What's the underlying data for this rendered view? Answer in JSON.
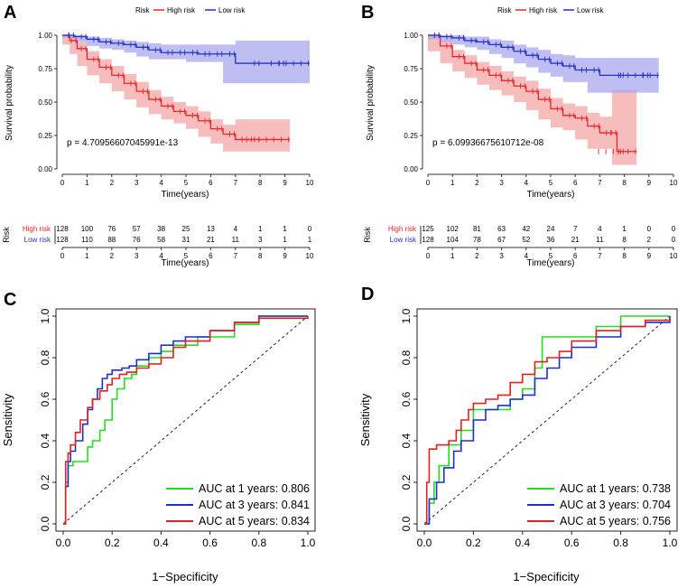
{
  "colors": {
    "high": "#E8262A",
    "low": "#2431C9",
    "high_band": "#F4A6A6",
    "low_band": "#A8A8EE",
    "auc1": "#22DD22",
    "auc3": "#1F2FCF",
    "auc5": "#E0211F"
  },
  "chart_data": [
    {
      "panel": "A",
      "type": "line",
      "subtype": "kaplan-meier",
      "legend": {
        "title": "Risk",
        "entries": [
          "High risk",
          "Low risk"
        ]
      },
      "xlabel": "Time(years)",
      "ylabel": "Survival probability",
      "xlim": [
        0,
        10
      ],
      "ylim": [
        0,
        1
      ],
      "xticks": [
        "0",
        "1",
        "2",
        "3",
        "4",
        "5",
        "6",
        "7",
        "8",
        "9",
        "10"
      ],
      "yticks": [
        "0.00",
        "0.25",
        "0.50",
        "0.75",
        "1.00"
      ],
      "pvalue_text": "p = 4.70956607045991e-13",
      "series": [
        {
          "name": "High risk",
          "x": [
            0,
            0.3,
            0.6,
            1,
            1.5,
            2,
            2.5,
            3,
            3.5,
            4,
            4.5,
            5,
            5.5,
            6,
            6.5,
            7,
            7.5,
            8,
            9.2
          ],
          "y": [
            1,
            0.96,
            0.9,
            0.82,
            0.76,
            0.7,
            0.64,
            0.58,
            0.52,
            0.47,
            0.43,
            0.4,
            0.36,
            0.3,
            0.26,
            0.22,
            0.22,
            0.22,
            0.22
          ],
          "lower": [
            1,
            0.93,
            0.86,
            0.77,
            0.7,
            0.64,
            0.58,
            0.52,
            0.46,
            0.41,
            0.37,
            0.34,
            0.3,
            0.24,
            0.19,
            0.13,
            0.13,
            0.13,
            0.13
          ],
          "upper": [
            1,
            0.99,
            0.95,
            0.88,
            0.82,
            0.77,
            0.71,
            0.65,
            0.59,
            0.54,
            0.5,
            0.47,
            0.43,
            0.37,
            0.33,
            0.37,
            0.37,
            0.37,
            0.37
          ]
        },
        {
          "name": "Low risk",
          "x": [
            0,
            0.5,
            1,
            1.5,
            2,
            2.5,
            3,
            3.5,
            4,
            4.5,
            5,
            5.5,
            6,
            6.5,
            7,
            8,
            9,
            10
          ],
          "y": [
            1,
            0.99,
            0.97,
            0.95,
            0.94,
            0.93,
            0.91,
            0.89,
            0.87,
            0.87,
            0.87,
            0.86,
            0.86,
            0.86,
            0.79,
            0.79,
            0.79,
            0.79
          ],
          "lower": [
            1,
            0.98,
            0.95,
            0.92,
            0.9,
            0.89,
            0.87,
            0.84,
            0.82,
            0.82,
            0.82,
            0.8,
            0.8,
            0.8,
            0.64,
            0.64,
            0.64,
            0.64
          ],
          "upper": [
            1,
            1,
            0.99,
            0.98,
            0.97,
            0.96,
            0.95,
            0.94,
            0.93,
            0.93,
            0.93,
            0.93,
            0.93,
            0.93,
            0.96,
            0.96,
            0.96,
            0.96
          ]
        }
      ],
      "risk_table": {
        "title": "Risk",
        "xlabel": "Time(years)",
        "rows": [
          {
            "label": "High risk",
            "counts": [
              "128",
              "100",
              "76",
              "57",
              "38",
              "25",
              "13",
              "4",
              "1",
              "1",
              "0"
            ]
          },
          {
            "label": "Low risk",
            "counts": [
              "128",
              "110",
              "88",
              "76",
              "58",
              "31",
              "21",
              "11",
              "3",
              "1",
              "1"
            ]
          }
        ]
      }
    },
    {
      "panel": "B",
      "type": "line",
      "subtype": "kaplan-meier",
      "legend": {
        "title": "Risk",
        "entries": [
          "High risk",
          "Low risk"
        ]
      },
      "xlabel": "Time(years)",
      "ylabel": "Survival probability",
      "xlim": [
        0,
        10
      ],
      "ylim": [
        0,
        1
      ],
      "xticks": [
        "0",
        "1",
        "2",
        "3",
        "4",
        "5",
        "6",
        "7",
        "8",
        "9",
        "10"
      ],
      "yticks": [
        "0.00",
        "0.25",
        "0.50",
        "0.75",
        "1.00"
      ],
      "pvalue_text": "p = 6.09936675610712e-08",
      "series": [
        {
          "name": "High risk",
          "x": [
            0,
            0.5,
            1,
            1.5,
            2,
            2.5,
            3,
            3.5,
            4,
            4.5,
            5,
            5.5,
            6,
            6.5,
            7,
            7.5,
            7.7,
            8,
            8.5
          ],
          "y": [
            1,
            0.92,
            0.84,
            0.79,
            0.74,
            0.7,
            0.66,
            0.62,
            0.58,
            0.52,
            0.45,
            0.4,
            0.38,
            0.32,
            0.27,
            0.27,
            0.13,
            0.13,
            0.13
          ],
          "lower": [
            1,
            0.88,
            0.79,
            0.73,
            0.68,
            0.63,
            0.59,
            0.55,
            0.5,
            0.44,
            0.37,
            0.31,
            0.29,
            0.22,
            0.15,
            0.15,
            0.03,
            0.03,
            0.03
          ],
          "upper": [
            1,
            0.96,
            0.89,
            0.85,
            0.8,
            0.77,
            0.73,
            0.69,
            0.66,
            0.6,
            0.53,
            0.49,
            0.47,
            0.42,
            0.39,
            0.59,
            0.59,
            0.59,
            0.59
          ]
        },
        {
          "name": "Low risk",
          "x": [
            0,
            0.5,
            1,
            1.5,
            2,
            2.5,
            3,
            3.5,
            4,
            4.5,
            5,
            5.5,
            6,
            6.5,
            7,
            8,
            9,
            9.4
          ],
          "y": [
            1,
            0.99,
            0.98,
            0.96,
            0.95,
            0.93,
            0.91,
            0.88,
            0.85,
            0.82,
            0.79,
            0.77,
            0.74,
            0.74,
            0.7,
            0.7,
            0.7,
            0.7
          ],
          "lower": [
            1,
            0.97,
            0.95,
            0.93,
            0.91,
            0.89,
            0.86,
            0.83,
            0.79,
            0.76,
            0.72,
            0.69,
            0.65,
            0.65,
            0.57,
            0.57,
            0.57,
            0.57
          ],
          "upper": [
            1,
            1,
            1,
            0.99,
            0.99,
            0.97,
            0.96,
            0.93,
            0.91,
            0.89,
            0.86,
            0.85,
            0.83,
            0.83,
            0.83,
            0.83,
            0.83,
            0.83
          ]
        }
      ],
      "risk_table": {
        "title": "Risk",
        "xlabel": "Time(years)",
        "rows": [
          {
            "label": "High risk",
            "counts": [
              "125",
              "102",
              "81",
              "63",
              "42",
              "24",
              "7",
              "4",
              "1",
              "0",
              "0"
            ]
          },
          {
            "label": "Low risk",
            "counts": [
              "128",
              "104",
              "78",
              "67",
              "52",
              "36",
              "21",
              "11",
              "8",
              "2",
              "0"
            ]
          }
        ]
      }
    },
    {
      "panel": "C",
      "type": "line",
      "subtype": "roc",
      "xlabel": "1−Specificity",
      "ylabel": "Sensitivity",
      "xlim": [
        0,
        1
      ],
      "ylim": [
        0,
        1
      ],
      "xticks": [
        "0.0",
        "0.2",
        "0.4",
        "0.6",
        "0.8",
        "1.0"
      ],
      "yticks": [
        "0.0",
        "0.2",
        "0.4",
        "0.6",
        "0.8",
        "1.0"
      ],
      "series": [
        {
          "name": "AUC at 1 years: 0.806",
          "x": [
            0,
            0.01,
            0.02,
            0.04,
            0.06,
            0.1,
            0.12,
            0.15,
            0.17,
            0.2,
            0.22,
            0.25,
            0.28,
            0.3,
            0.35,
            0.4,
            0.45,
            0.5,
            0.55,
            0.6,
            0.7,
            0.8,
            1
          ],
          "y": [
            0,
            0.2,
            0.28,
            0.3,
            0.3,
            0.37,
            0.4,
            0.45,
            0.5,
            0.6,
            0.65,
            0.7,
            0.72,
            0.76,
            0.8,
            0.83,
            0.86,
            0.86,
            0.9,
            0.9,
            0.96,
            1,
            1
          ]
        },
        {
          "name": "AUC at 3 years: 0.841",
          "x": [
            0,
            0.01,
            0.02,
            0.03,
            0.05,
            0.08,
            0.1,
            0.12,
            0.14,
            0.16,
            0.18,
            0.2,
            0.24,
            0.27,
            0.3,
            0.35,
            0.4,
            0.45,
            0.5,
            0.6,
            0.7,
            0.8,
            1
          ],
          "y": [
            0,
            0.18,
            0.3,
            0.35,
            0.4,
            0.48,
            0.55,
            0.6,
            0.65,
            0.7,
            0.72,
            0.74,
            0.75,
            0.76,
            0.79,
            0.82,
            0.86,
            0.88,
            0.9,
            0.93,
            0.97,
            1,
            1
          ]
        },
        {
          "name": "AUC at 5 years: 0.834",
          "x": [
            0,
            0.01,
            0.02,
            0.03,
            0.05,
            0.07,
            0.1,
            0.12,
            0.15,
            0.18,
            0.2,
            0.23,
            0.26,
            0.3,
            0.35,
            0.4,
            0.45,
            0.5,
            0.6,
            0.7,
            0.8,
            1
          ],
          "y": [
            0,
            0.3,
            0.34,
            0.38,
            0.44,
            0.5,
            0.56,
            0.6,
            0.64,
            0.67,
            0.7,
            0.72,
            0.73,
            0.75,
            0.77,
            0.8,
            0.85,
            0.88,
            0.93,
            0.97,
            0.99,
            1
          ]
        }
      ]
    },
    {
      "panel": "D",
      "type": "line",
      "subtype": "roc",
      "xlabel": "1−Specificity",
      "ylabel": "Sensitivity",
      "xlim": [
        0,
        1
      ],
      "ylim": [
        0,
        1
      ],
      "xticks": [
        "0.0",
        "0.2",
        "0.4",
        "0.6",
        "0.8",
        "1.0"
      ],
      "yticks": [
        "0.0",
        "0.2",
        "0.4",
        "0.6",
        "0.8",
        "1.0"
      ],
      "series": [
        {
          "name": "AUC at 1 years: 0.738",
          "x": [
            0,
            0.02,
            0.04,
            0.06,
            0.1,
            0.15,
            0.2,
            0.25,
            0.3,
            0.35,
            0.4,
            0.45,
            0.48,
            0.5,
            0.55,
            0.6,
            0.7,
            0.8,
            1
          ],
          "y": [
            0,
            0.1,
            0.2,
            0.28,
            0.38,
            0.45,
            0.55,
            0.55,
            0.55,
            0.6,
            0.65,
            0.75,
            0.9,
            0.9,
            0.9,
            0.9,
            0.95,
            1,
            1
          ]
        },
        {
          "name": "AUC at 3 years: 0.704",
          "x": [
            0,
            0.02,
            0.05,
            0.08,
            0.12,
            0.15,
            0.2,
            0.25,
            0.3,
            0.35,
            0.4,
            0.45,
            0.5,
            0.55,
            0.6,
            0.7,
            0.8,
            0.9,
            1
          ],
          "y": [
            0,
            0.12,
            0.2,
            0.27,
            0.35,
            0.4,
            0.5,
            0.55,
            0.57,
            0.6,
            0.62,
            0.7,
            0.75,
            0.8,
            0.85,
            0.9,
            0.95,
            0.97,
            1
          ]
        },
        {
          "name": "AUC at 5 years: 0.756",
          "x": [
            0,
            0.01,
            0.02,
            0.05,
            0.1,
            0.13,
            0.15,
            0.18,
            0.2,
            0.25,
            0.3,
            0.35,
            0.4,
            0.45,
            0.5,
            0.55,
            0.6,
            0.7,
            0.8,
            0.9,
            1
          ],
          "y": [
            0,
            0.2,
            0.36,
            0.38,
            0.4,
            0.45,
            0.5,
            0.55,
            0.58,
            0.6,
            0.62,
            0.68,
            0.72,
            0.78,
            0.8,
            0.83,
            0.88,
            0.93,
            0.95,
            0.98,
            0.99
          ]
        }
      ],
      "legend_values": [
        "AUC at 1 years: 0.738",
        "AUC at 3 years: 0.704",
        "AUC at 5 years: 0.756"
      ]
    }
  ],
  "panel_letters": [
    "A",
    "B",
    "C",
    "D"
  ]
}
